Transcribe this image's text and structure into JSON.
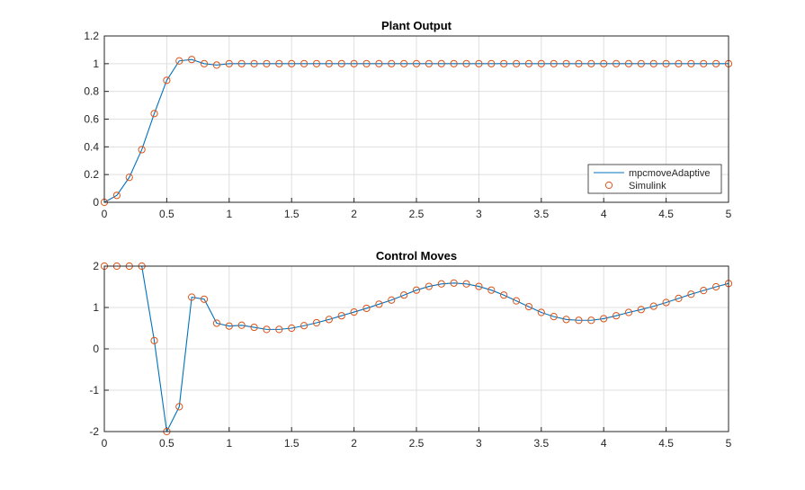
{
  "chart_data": [
    {
      "type": "line",
      "title": "Plant Output",
      "xlabel": "",
      "ylabel": "",
      "xlim": [
        0,
        5
      ],
      "ylim": [
        0,
        1.2
      ],
      "xticks": [
        "0",
        "0.5",
        "1",
        "1.5",
        "2",
        "2.5",
        "3",
        "3.5",
        "4",
        "4.5",
        "5"
      ],
      "yticks": [
        "0",
        "0.2",
        "0.4",
        "0.6",
        "0.8",
        "1",
        "1.2"
      ],
      "grid": true,
      "legend_position": "bottom-right",
      "x": [
        0,
        0.1,
        0.2,
        0.3,
        0.4,
        0.5,
        0.6,
        0.7,
        0.8,
        0.9,
        1.0,
        1.1,
        1.2,
        1.3,
        1.4,
        1.5,
        1.6,
        1.7,
        1.8,
        1.9,
        2.0,
        2.1,
        2.2,
        2.3,
        2.4,
        2.5,
        2.6,
        2.7,
        2.8,
        2.9,
        3.0,
        3.1,
        3.2,
        3.3,
        3.4,
        3.5,
        3.6,
        3.7,
        3.8,
        3.9,
        4.0,
        4.1,
        4.2,
        4.3,
        4.4,
        4.5,
        4.6,
        4.7,
        4.8,
        4.9,
        5.0
      ],
      "series": [
        {
          "name": "mpcmoveAdaptive",
          "style": "line",
          "color": "#0072BD",
          "values": [
            0,
            0.05,
            0.18,
            0.38,
            0.64,
            0.88,
            1.02,
            1.03,
            1.0,
            0.99,
            1.0,
            1,
            1,
            1,
            1,
            1,
            1,
            1,
            1,
            1,
            1,
            1,
            1,
            1,
            1,
            1,
            1,
            1,
            1,
            1,
            1,
            1,
            1,
            1,
            1,
            1,
            1,
            1,
            1,
            1,
            1,
            1,
            1,
            1,
            1,
            1,
            1,
            1,
            1,
            1,
            1
          ]
        },
        {
          "name": "Simulink",
          "style": "marker",
          "color": "#D95319",
          "values": [
            0,
            0.05,
            0.18,
            0.38,
            0.64,
            0.88,
            1.02,
            1.03,
            1.0,
            0.99,
            1.0,
            1,
            1,
            1,
            1,
            1,
            1,
            1,
            1,
            1,
            1,
            1,
            1,
            1,
            1,
            1,
            1,
            1,
            1,
            1,
            1,
            1,
            1,
            1,
            1,
            1,
            1,
            1,
            1,
            1,
            1,
            1,
            1,
            1,
            1,
            1,
            1,
            1,
            1,
            1,
            1
          ]
        }
      ]
    },
    {
      "type": "line",
      "title": "Control Moves",
      "xlabel": "",
      "ylabel": "",
      "xlim": [
        0,
        5
      ],
      "ylim": [
        -2,
        2
      ],
      "xticks": [
        "0",
        "0.5",
        "1",
        "1.5",
        "2",
        "2.5",
        "3",
        "3.5",
        "4",
        "4.5",
        "5"
      ],
      "yticks": [
        "-2",
        "-1",
        "0",
        "1",
        "2"
      ],
      "grid": true,
      "x": [
        0,
        0.1,
        0.2,
        0.3,
        0.4,
        0.5,
        0.6,
        0.7,
        0.8,
        0.9,
        1.0,
        1.1,
        1.2,
        1.3,
        1.4,
        1.5,
        1.6,
        1.7,
        1.8,
        1.9,
        2.0,
        2.1,
        2.2,
        2.3,
        2.4,
        2.5,
        2.6,
        2.7,
        2.8,
        2.9,
        3.0,
        3.1,
        3.2,
        3.3,
        3.4,
        3.5,
        3.6,
        3.7,
        3.8,
        3.9,
        4.0,
        4.1,
        4.2,
        4.3,
        4.4,
        4.5,
        4.6,
        4.7,
        4.8,
        4.9,
        5.0
      ],
      "series": [
        {
          "name": "mpcmoveAdaptive",
          "style": "line",
          "color": "#0072BD",
          "values": [
            2,
            2,
            2,
            2,
            0.2,
            -2,
            -1.4,
            1.25,
            1.2,
            0.62,
            0.55,
            0.57,
            0.52,
            0.47,
            0.47,
            0.5,
            0.56,
            0.63,
            0.71,
            0.8,
            0.89,
            0.98,
            1.08,
            1.18,
            1.3,
            1.42,
            1.51,
            1.57,
            1.59,
            1.57,
            1.51,
            1.42,
            1.3,
            1.16,
            1.02,
            0.88,
            0.78,
            0.71,
            0.69,
            0.69,
            0.73,
            0.8,
            0.88,
            0.95,
            1.03,
            1.12,
            1.22,
            1.32,
            1.41,
            1.5,
            1.58
          ]
        },
        {
          "name": "Simulink",
          "style": "marker",
          "color": "#D95319",
          "values": [
            2,
            2,
            2,
            2,
            0.2,
            -2,
            -1.4,
            1.25,
            1.2,
            0.62,
            0.55,
            0.57,
            0.52,
            0.47,
            0.47,
            0.5,
            0.56,
            0.63,
            0.71,
            0.8,
            0.89,
            0.98,
            1.08,
            1.18,
            1.3,
            1.42,
            1.51,
            1.57,
            1.59,
            1.57,
            1.51,
            1.42,
            1.3,
            1.16,
            1.02,
            0.88,
            0.78,
            0.71,
            0.69,
            0.69,
            0.73,
            0.8,
            0.88,
            0.95,
            1.03,
            1.12,
            1.22,
            1.32,
            1.41,
            1.5,
            1.58
          ]
        }
      ]
    }
  ]
}
